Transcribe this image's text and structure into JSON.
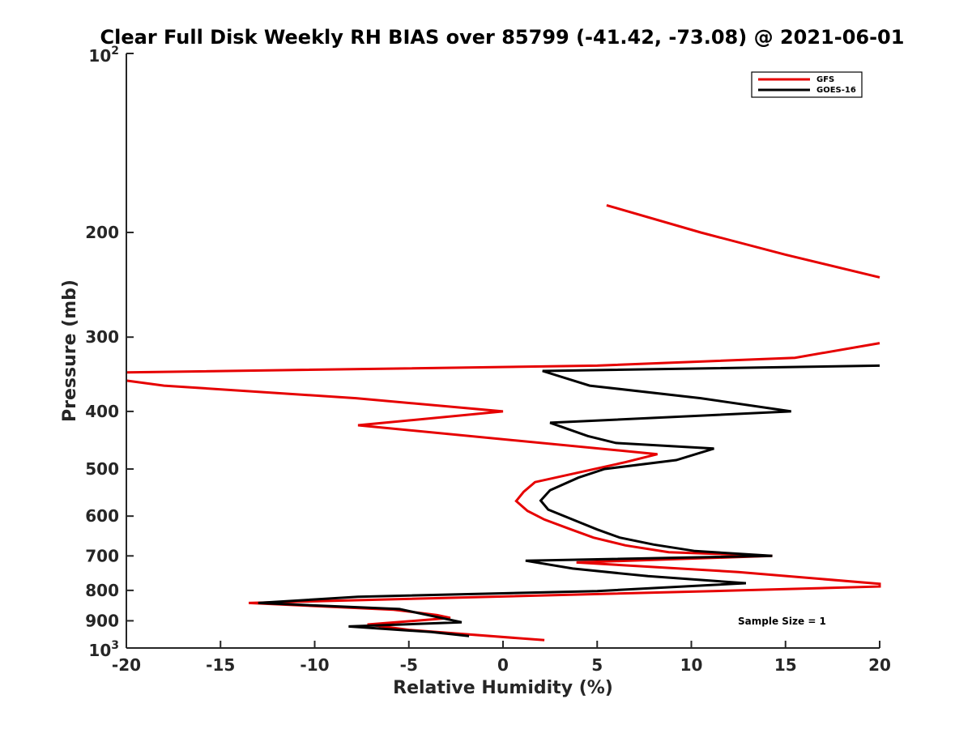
{
  "chart_data": {
    "type": "line",
    "title": "Clear Full Disk Weekly RH BIAS over 85799 (-41.42, -73.08) @ 2021-06-01",
    "xlabel": "Relative Humidity (%)",
    "ylabel": "Pressure (mb)",
    "xlim": [
      -20,
      20
    ],
    "ylim": [
      100,
      1000
    ],
    "y_scale": "log",
    "y_reversed": true,
    "x_ticks": [
      "-20",
      "-15",
      "-10",
      "-5",
      "0",
      "5",
      "10",
      "15",
      "20"
    ],
    "y_ticks": [
      {
        "value": 100,
        "base": "10",
        "exp": "2"
      },
      {
        "value": 200,
        "label": "200"
      },
      {
        "value": 300,
        "label": "300"
      },
      {
        "value": 400,
        "label": "400"
      },
      {
        "value": 500,
        "label": "500"
      },
      {
        "value": 600,
        "label": "600"
      },
      {
        "value": 700,
        "label": "700"
      },
      {
        "value": 800,
        "label": "800"
      },
      {
        "value": 900,
        "label": "900"
      },
      {
        "value": 1000,
        "base": "10",
        "exp": "3"
      }
    ],
    "legend_position": "top-right",
    "annotation": "Sample Size = 1",
    "series": [
      {
        "name": "GFS",
        "color": "#e60000",
        "segments": [
          [
            [
              5.5,
              180
            ],
            [
              10.5,
              200
            ],
            [
              15,
              218
            ],
            [
              20,
              238
            ]
          ],
          [
            [
              20,
              307
            ],
            [
              15.5,
              325
            ],
            [
              5,
              335
            ],
            [
              -20,
              344
            ]
          ],
          [
            [
              -20,
              355
            ],
            [
              -18,
              362
            ],
            [
              -7.8,
              380
            ],
            [
              0,
              400
            ],
            [
              -7.7,
              422
            ],
            [
              8.2,
              472
            ],
            [
              6.5,
              487
            ],
            [
              1.7,
              526
            ],
            [
              1.1,
              546
            ],
            [
              0.7,
              566
            ],
            [
              1.3,
              588
            ],
            [
              2.2,
              608
            ],
            [
              3.5,
              630
            ],
            [
              4.8,
              652
            ],
            [
              6.5,
              672
            ],
            [
              8.8,
              690
            ],
            [
              14.3,
              700
            ],
            [
              3.9,
              718
            ],
            [
              12.5,
              745
            ],
            [
              20,
              780
            ],
            [
              20,
              788
            ],
            [
              12.5,
              800
            ],
            [
              -13.5,
              840
            ],
            [
              -5.8,
              862
            ],
            [
              -3.5,
              880
            ],
            [
              -2.8,
              890
            ],
            [
              -7.2,
              913
            ],
            [
              -5,
              932
            ],
            [
              2.2,
              970
            ]
          ]
        ]
      },
      {
        "name": "GOES-16",
        "color": "#000000",
        "segments": [
          [
            [
              20,
              335
            ],
            [
              2.1,
              342
            ],
            [
              4.6,
              362
            ],
            [
              10.5,
              380
            ],
            [
              15.3,
              400
            ],
            [
              2.5,
              418
            ],
            [
              4.5,
              440
            ],
            [
              6,
              452
            ],
            [
              11.2,
              462
            ],
            [
              9.2,
              483
            ],
            [
              5.4,
              500
            ],
            [
              4,
              517
            ],
            [
              2.5,
              543
            ],
            [
              2,
              565
            ],
            [
              2.4,
              585
            ],
            [
              3.8,
              610
            ],
            [
              5,
              632
            ],
            [
              6.2,
              652
            ],
            [
              8,
              670
            ],
            [
              10.2,
              687
            ],
            [
              14.3,
              700
            ],
            [
              1.2,
              713
            ],
            [
              3.7,
              735
            ],
            [
              7.7,
              757
            ],
            [
              12.9,
              778
            ],
            [
              5,
              802
            ],
            [
              -7.7,
              820
            ],
            [
              -13,
              840
            ],
            [
              -5.5,
              860
            ],
            [
              -4,
              880
            ],
            [
              -2.2,
              905
            ],
            [
              -8.2,
              920
            ],
            [
              -3.8,
              940
            ],
            [
              -1.8,
              955
            ]
          ]
        ]
      }
    ]
  }
}
